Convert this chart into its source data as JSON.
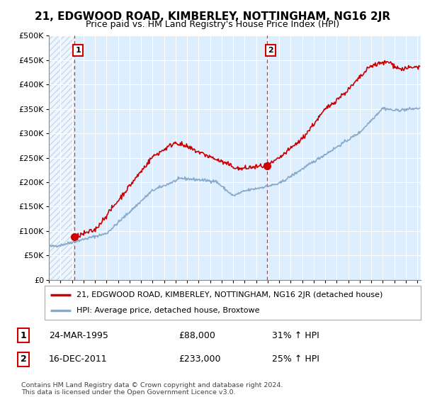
{
  "title": "21, EDGWOOD ROAD, KIMBERLEY, NOTTINGHAM, NG16 2JR",
  "subtitle": "Price paid vs. HM Land Registry's House Price Index (HPI)",
  "ylim": [
    0,
    500000
  ],
  "yticks": [
    0,
    50000,
    100000,
    150000,
    200000,
    250000,
    300000,
    350000,
    400000,
    450000,
    500000
  ],
  "ytick_labels": [
    "£0",
    "£50K",
    "£100K",
    "£150K",
    "£200K",
    "£250K",
    "£300K",
    "£350K",
    "£400K",
    "£450K",
    "£500K"
  ],
  "xlim_start": 1993.0,
  "xlim_end": 2025.3,
  "background_color": "#ffffff",
  "plot_bg_color": "#ddeeff",
  "hatch_region_end": 1995.23,
  "legend_line1": "21, EDGWOOD ROAD, KIMBERLEY, NOTTINGHAM, NG16 2JR (detached house)",
  "legend_line2": "HPI: Average price, detached house, Broxtowe",
  "sale1_date": "24-MAR-1995",
  "sale1_price": 88000,
  "sale1_hpi": "31% ↑ HPI",
  "sale1_x": 1995.23,
  "sale2_date": "16-DEC-2011",
  "sale2_price": 233000,
  "sale2_hpi": "25% ↑ HPI",
  "sale2_x": 2011.96,
  "footer": "Contains HM Land Registry data © Crown copyright and database right 2024.\nThis data is licensed under the Open Government Licence v3.0.",
  "red_line_color": "#cc0000",
  "blue_line_color": "#88aacc",
  "vline_color": "#cc0000",
  "badge_edge_color": "#cc0000"
}
